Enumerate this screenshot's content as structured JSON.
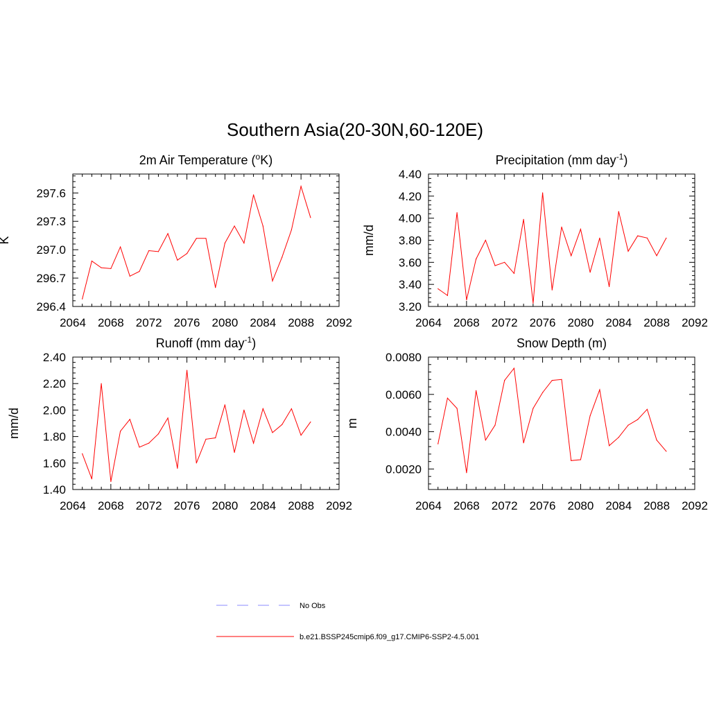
{
  "title": "Southern Asia(20-30N,60-120E)",
  "colors": {
    "model": "#ff0000",
    "obs": "#8888ff",
    "axis": "#000000"
  },
  "legend": [
    {
      "label": "No Obs",
      "style": "dashed",
      "color": "#8888ff"
    },
    {
      "label": "b.e21.BSSP245cmip6.f09_g17.CMIP6-SSP2-4.5.001",
      "style": "solid",
      "color": "#ff0000"
    }
  ],
  "chart_data": [
    {
      "type": "line",
      "title": "2m Air Temperature",
      "title_prefix": "2m Air Temperature (",
      "title_sup": "o",
      "title_suffix": "K)",
      "ylabel": "K",
      "xlim": [
        2064,
        2092
      ],
      "ylim": [
        296.4,
        297.8
      ],
      "xticks": [
        2064,
        2068,
        2072,
        2076,
        2080,
        2084,
        2088,
        2092
      ],
      "yticks": [
        "296.4",
        "296.7",
        "297.0",
        "297.3",
        "297.6"
      ],
      "series": [
        {
          "x": [
            2065,
            2066,
            2067,
            2068,
            2069,
            2070,
            2071,
            2072,
            2073,
            2074,
            2075,
            2076,
            2077,
            2078,
            2079,
            2080,
            2081,
            2082,
            2083,
            2084,
            2085,
            2086,
            2087,
            2088,
            2089
          ],
          "values": [
            296.48,
            296.88,
            296.81,
            296.8,
            297.03,
            296.72,
            296.77,
            296.99,
            296.98,
            297.17,
            296.89,
            296.96,
            297.12,
            297.12,
            296.6,
            297.07,
            297.25,
            297.07,
            297.58,
            297.25,
            296.67,
            296.92,
            297.21,
            297.67,
            297.34
          ]
        }
      ]
    },
    {
      "type": "line",
      "title": "Precipitation",
      "title_prefix": "Precipitation (mm day",
      "title_sup": "-1",
      "title_suffix": ")",
      "ylabel": "mm/d",
      "xlim": [
        2064,
        2092
      ],
      "ylim": [
        3.2,
        4.4
      ],
      "xticks": [
        2064,
        2068,
        2072,
        2076,
        2080,
        2084,
        2088,
        2092
      ],
      "yticks": [
        "3.20",
        "3.40",
        "3.60",
        "3.80",
        "4.00",
        "4.20",
        "4.40"
      ],
      "series": [
        {
          "x": [
            2065,
            2066,
            2067,
            2068,
            2069,
            2070,
            2071,
            2072,
            2073,
            2074,
            2075,
            2076,
            2077,
            2078,
            2079,
            2080,
            2081,
            2082,
            2083,
            2084,
            2085,
            2086,
            2087,
            2088,
            2089
          ],
          "values": [
            3.36,
            3.3,
            4.05,
            3.26,
            3.63,
            3.8,
            3.57,
            3.6,
            3.5,
            3.99,
            3.23,
            4.23,
            3.35,
            3.92,
            3.66,
            3.9,
            3.51,
            3.82,
            3.38,
            4.06,
            3.7,
            3.84,
            3.82,
            3.66,
            3.82
          ]
        }
      ]
    },
    {
      "type": "line",
      "title": "Runoff",
      "title_prefix": "Runoff (mm day",
      "title_sup": "-1",
      "title_suffix": ")",
      "ylabel": "mm/d",
      "xlim": [
        2064,
        2092
      ],
      "ylim": [
        1.4,
        2.4
      ],
      "xticks": [
        2064,
        2068,
        2072,
        2076,
        2080,
        2084,
        2088,
        2092
      ],
      "yticks": [
        "1.40",
        "1.60",
        "1.80",
        "2.00",
        "2.20",
        "2.40"
      ],
      "series": [
        {
          "x": [
            2065,
            2066,
            2067,
            2068,
            2069,
            2070,
            2071,
            2072,
            2073,
            2074,
            2075,
            2076,
            2077,
            2078,
            2079,
            2080,
            2081,
            2082,
            2083,
            2084,
            2085,
            2086,
            2087,
            2088,
            2089
          ],
          "values": [
            1.67,
            1.48,
            2.2,
            1.46,
            1.84,
            1.93,
            1.72,
            1.75,
            1.82,
            1.94,
            1.56,
            2.3,
            1.6,
            1.78,
            1.79,
            2.04,
            1.68,
            2.0,
            1.75,
            2.01,
            1.83,
            1.89,
            2.01,
            1.81,
            1.91
          ]
        }
      ]
    },
    {
      "type": "line",
      "title": "Snow Depth",
      "title_prefix": "Snow Depth (m)",
      "title_sup": "",
      "title_suffix": "",
      "ylabel": "m",
      "xlim": [
        2064,
        2092
      ],
      "ylim": [
        0.0009,
        0.008
      ],
      "xticks": [
        2064,
        2068,
        2072,
        2076,
        2080,
        2084,
        2088,
        2092
      ],
      "yticks": [
        "0.0020",
        "0.0040",
        "0.0060",
        "0.0080"
      ],
      "series": [
        {
          "x": [
            2065,
            2066,
            2067,
            2068,
            2069,
            2070,
            2071,
            2072,
            2073,
            2074,
            2075,
            2076,
            2077,
            2078,
            2079,
            2080,
            2081,
            2082,
            2083,
            2084,
            2085,
            2086,
            2087,
            2088,
            2089
          ],
          "values": [
            0.00335,
            0.0058,
            0.00525,
            0.0018,
            0.0062,
            0.00355,
            0.00435,
            0.00675,
            0.0074,
            0.0034,
            0.00525,
            0.0061,
            0.00675,
            0.0068,
            0.00245,
            0.0025,
            0.00485,
            0.00625,
            0.00325,
            0.0037,
            0.00435,
            0.00465,
            0.0052,
            0.00355,
            0.00295
          ]
        }
      ]
    }
  ]
}
